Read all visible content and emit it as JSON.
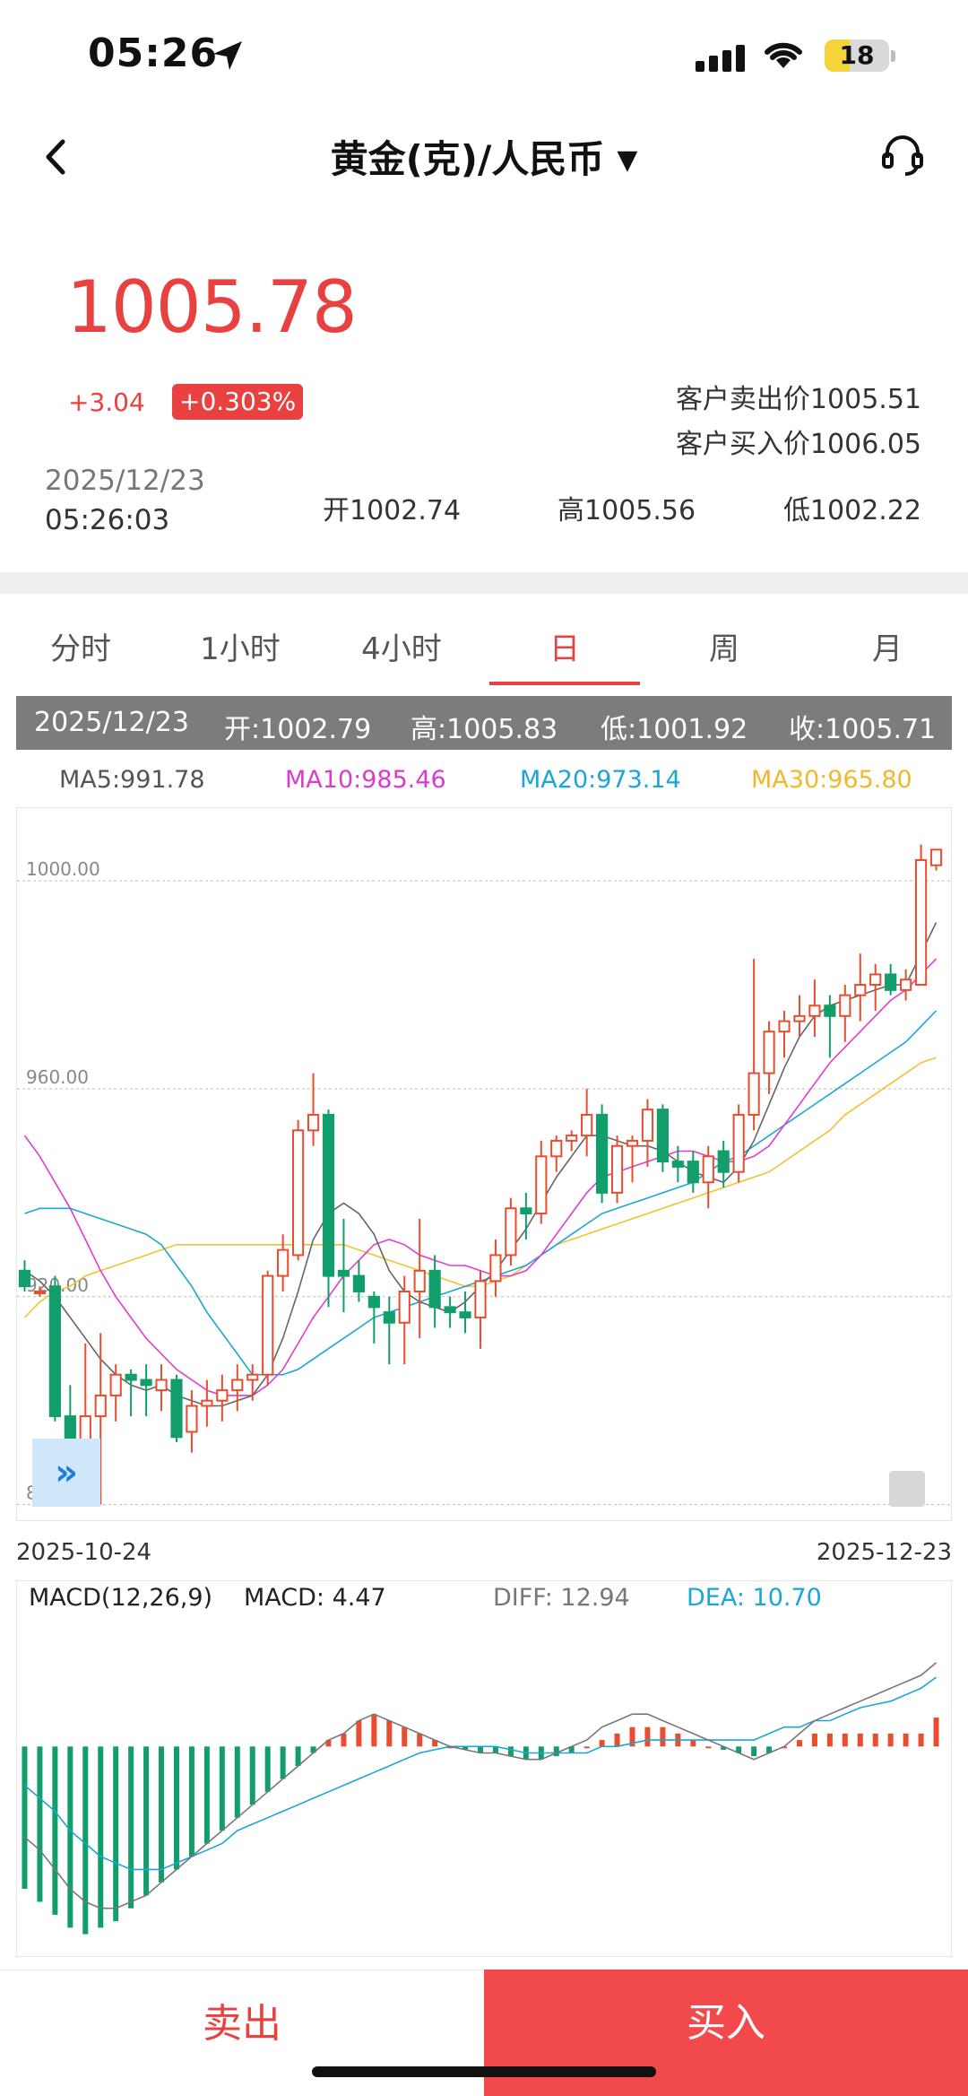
{
  "status_bar": {
    "time": "05:26",
    "battery": "18"
  },
  "header": {
    "title": "黄金(克)/人民币",
    "caret": "▼"
  },
  "quote": {
    "price": "1005.78",
    "change_abs": "+3.04",
    "change_pct": "+0.303%",
    "sell_price": "客户卖出价1005.51",
    "buy_price": "客户买入价1006.05",
    "date": "2025/12/23",
    "time": "05:26:03",
    "open": "开1002.74",
    "high": "高1005.56",
    "low": "低1002.22"
  },
  "tabs": [
    "分时",
    "1小时",
    "4小时",
    "日",
    "周",
    "月"
  ],
  "active_tab": "日",
  "ohlc": {
    "date": "2025/12/23",
    "open": "开:1002.79",
    "high": "高:1005.83",
    "low": "低:1001.92",
    "close": "收:1005.71"
  },
  "ma_legend": {
    "ma5": "MA5:991.78",
    "ma10": "MA10:985.46",
    "ma20": "MA20:973.14",
    "ma30": "MA30:965.80"
  },
  "colors": {
    "up": "#e94c2e",
    "down": "#129e6a",
    "ma5": "#666666",
    "ma10": "#e03ccf",
    "ma20": "#1aa6d6",
    "ma30": "#f2c22e",
    "accent": "#e94040"
  },
  "chart_data": [
    {
      "type": "candlestick",
      "y_ticks": [
        "1000.00",
        "960.00",
        "920.00",
        "880.00"
      ],
      "ylim": [
        877,
        1014
      ],
      "x_start_label": "2025-10-24",
      "x_end_label": "2025-12-23",
      "candles": [
        {
          "o": 925,
          "h": 927,
          "l": 921,
          "c": 922
        },
        {
          "o": 921,
          "h": 922,
          "l": 920,
          "c": 921
        },
        {
          "o": 922,
          "h": 924,
          "l": 896,
          "c": 897
        },
        {
          "o": 897,
          "h": 903,
          "l": 884,
          "c": 890
        },
        {
          "o": 890,
          "h": 911,
          "l": 884,
          "c": 897
        },
        {
          "o": 897,
          "h": 913,
          "l": 880,
          "c": 901
        },
        {
          "o": 901,
          "h": 907,
          "l": 896,
          "c": 905
        },
        {
          "o": 905,
          "h": 906,
          "l": 897,
          "c": 904
        },
        {
          "o": 904,
          "h": 907,
          "l": 897,
          "c": 903
        },
        {
          "o": 902,
          "h": 907,
          "l": 898,
          "c": 904
        },
        {
          "o": 904,
          "h": 905,
          "l": 892,
          "c": 893
        },
        {
          "o": 894,
          "h": 902,
          "l": 890,
          "c": 899
        },
        {
          "o": 899,
          "h": 904,
          "l": 895,
          "c": 900
        },
        {
          "o": 900,
          "h": 905,
          "l": 896,
          "c": 902
        },
        {
          "o": 902,
          "h": 907,
          "l": 898,
          "c": 904
        },
        {
          "o": 904,
          "h": 907,
          "l": 900,
          "c": 905
        },
        {
          "o": 905,
          "h": 925,
          "l": 903,
          "c": 924
        },
        {
          "o": 924,
          "h": 932,
          "l": 921,
          "c": 929
        },
        {
          "o": 928,
          "h": 954,
          "l": 927,
          "c": 952
        },
        {
          "o": 952,
          "h": 963,
          "l": 949,
          "c": 955
        },
        {
          "o": 955,
          "h": 956,
          "l": 918,
          "c": 924
        },
        {
          "o": 925,
          "h": 935,
          "l": 917,
          "c": 924
        },
        {
          "o": 924,
          "h": 927,
          "l": 919,
          "c": 921
        },
        {
          "o": 920,
          "h": 921,
          "l": 911,
          "c": 918
        },
        {
          "o": 917,
          "h": 920,
          "l": 907,
          "c": 915
        },
        {
          "o": 915,
          "h": 924,
          "l": 907,
          "c": 921
        },
        {
          "o": 921,
          "h": 935,
          "l": 912,
          "c": 925
        },
        {
          "o": 925,
          "h": 928,
          "l": 914,
          "c": 918
        },
        {
          "o": 918,
          "h": 920,
          "l": 914,
          "c": 917
        },
        {
          "o": 917,
          "h": 921,
          "l": 913,
          "c": 916
        },
        {
          "o": 916,
          "h": 925,
          "l": 910,
          "c": 923
        },
        {
          "o": 923,
          "h": 931,
          "l": 920,
          "c": 928
        },
        {
          "o": 928,
          "h": 939,
          "l": 926,
          "c": 937
        },
        {
          "o": 937,
          "h": 940,
          "l": 931,
          "c": 936
        },
        {
          "o": 936,
          "h": 950,
          "l": 934,
          "c": 947
        },
        {
          "o": 947,
          "h": 951,
          "l": 944,
          "c": 950
        },
        {
          "o": 950,
          "h": 952,
          "l": 948,
          "c": 951
        },
        {
          "o": 951,
          "h": 960,
          "l": 947,
          "c": 955
        },
        {
          "o": 955,
          "h": 957,
          "l": 938,
          "c": 940
        },
        {
          "o": 940,
          "h": 951,
          "l": 938,
          "c": 949
        },
        {
          "o": 949,
          "h": 951,
          "l": 942,
          "c": 950
        },
        {
          "o": 950,
          "h": 958,
          "l": 945,
          "c": 956
        },
        {
          "o": 956,
          "h": 957,
          "l": 944,
          "c": 946
        },
        {
          "o": 946,
          "h": 949,
          "l": 942,
          "c": 945
        },
        {
          "o": 946,
          "h": 948,
          "l": 940,
          "c": 942
        },
        {
          "o": 942,
          "h": 949,
          "l": 937,
          "c": 947
        },
        {
          "o": 948,
          "h": 950,
          "l": 941,
          "c": 944
        },
        {
          "o": 944,
          "h": 957,
          "l": 942,
          "c": 955
        },
        {
          "o": 955,
          "h": 985,
          "l": 952,
          "c": 963
        },
        {
          "o": 963,
          "h": 973,
          "l": 959,
          "c": 971
        },
        {
          "o": 971,
          "h": 975,
          "l": 966,
          "c": 973
        },
        {
          "o": 973,
          "h": 978,
          "l": 970,
          "c": 974
        },
        {
          "o": 974,
          "h": 981,
          "l": 970,
          "c": 976
        },
        {
          "o": 976,
          "h": 978,
          "l": 966,
          "c": 974
        },
        {
          "o": 974,
          "h": 980,
          "l": 969,
          "c": 978
        },
        {
          "o": 978,
          "h": 986,
          "l": 973,
          "c": 980
        },
        {
          "o": 980,
          "h": 984,
          "l": 975,
          "c": 982
        },
        {
          "o": 982,
          "h": 984,
          "l": 978,
          "c": 979
        },
        {
          "o": 979,
          "h": 983,
          "l": 977,
          "c": 981
        },
        {
          "o": 980,
          "h": 1007,
          "l": 980,
          "c": 1004
        },
        {
          "o": 1003,
          "h": 1006,
          "l": 1002,
          "c": 1006
        }
      ],
      "ma5": [
        925,
        923,
        920,
        916,
        912,
        908,
        905,
        903,
        902,
        903,
        901,
        900,
        899,
        899,
        900,
        901,
        905,
        912,
        921,
        931,
        936,
        938,
        936,
        932,
        925,
        921,
        919,
        918,
        917,
        919,
        922,
        925,
        929,
        933,
        938,
        943,
        947,
        951,
        951,
        950,
        949,
        949,
        948,
        946,
        944,
        943,
        942,
        945,
        950,
        957,
        964,
        970,
        974,
        976,
        977,
        978,
        979,
        980,
        980,
        986,
        992
      ],
      "ma10": [
        951,
        947,
        942,
        937,
        931,
        925,
        920,
        916,
        912,
        909,
        906,
        904,
        902,
        901,
        901,
        901,
        903,
        906,
        911,
        916,
        920,
        924,
        927,
        930,
        931,
        930,
        928,
        927,
        926,
        926,
        925,
        924,
        924,
        925,
        928,
        932,
        936,
        940,
        943,
        944,
        945,
        946,
        947,
        948,
        948,
        947,
        946,
        946,
        947,
        949,
        953,
        957,
        961,
        965,
        968,
        971,
        974,
        977,
        979,
        982,
        985
      ],
      "ma20": [
        936,
        937,
        937,
        937,
        936,
        935,
        934,
        933,
        932,
        930,
        926,
        922,
        917,
        913,
        909,
        905,
        905,
        905,
        906,
        908,
        910,
        912,
        914,
        916,
        917,
        918,
        919,
        920,
        921,
        922,
        923,
        924,
        925,
        926,
        928,
        930,
        932,
        934,
        936,
        937,
        938,
        939,
        940,
        941,
        942,
        944,
        946,
        947,
        949,
        951,
        953,
        955,
        957,
        959,
        961,
        963,
        965,
        967,
        969,
        972,
        975
      ],
      "ma30": [
        916,
        919,
        921,
        922,
        924,
        925,
        926,
        927,
        928,
        929,
        930,
        930,
        930,
        930,
        930,
        930,
        930,
        930,
        930,
        930,
        930,
        930,
        929,
        928,
        927,
        926,
        925,
        924,
        923,
        922,
        922,
        923,
        924,
        926,
        928,
        930,
        931,
        932,
        933,
        934,
        935,
        936,
        937,
        938,
        939,
        940,
        941,
        942,
        943,
        944,
        946,
        948,
        950,
        952,
        955,
        957,
        959,
        961,
        963,
        965,
        966
      ]
    },
    {
      "type": "macd",
      "params": "MACD(12,26,9)",
      "macd_label": "MACD: 4.47",
      "diff_label": "DIFF: 12.94",
      "dea_label": "DEA: 10.70",
      "ylim": [
        -31,
        20
      ],
      "hist": [
        -22,
        -24,
        -26,
        -28,
        -29,
        -28,
        -27,
        -25,
        -23,
        -21,
        -19,
        -17,
        -15,
        -13,
        -11,
        -9,
        -7,
        -5,
        -3,
        -1,
        1,
        2,
        4,
        5,
        4,
        3,
        2,
        1,
        0,
        -0.5,
        -1,
        -1,
        -1.5,
        -2,
        -2,
        -1.5,
        -1,
        0,
        1,
        2,
        3,
        3,
        3,
        2,
        1,
        0,
        -0.5,
        -1,
        -1.5,
        -1,
        0,
        1,
        2,
        2,
        2,
        2,
        2,
        2,
        2,
        2,
        4.47
      ],
      "diff": [
        -14,
        -16,
        -19,
        -22,
        -24,
        -25,
        -25,
        -24,
        -23,
        -21,
        -19,
        -17,
        -15,
        -13,
        -11,
        -9,
        -7,
        -5,
        -3,
        -1,
        1,
        2,
        4,
        5,
        4,
        3,
        2,
        1,
        0,
        -0.5,
        -1,
        -1,
        -1.5,
        -2,
        -2,
        -1,
        0,
        1,
        3,
        4,
        5,
        5,
        4,
        3,
        2,
        1,
        0,
        -1,
        -2,
        -1,
        0,
        2,
        4,
        5,
        6,
        7,
        8,
        9,
        10,
        11,
        12.94
      ],
      "dea": [
        -6,
        -8,
        -10,
        -13,
        -15,
        -17,
        -18,
        -19,
        -19,
        -19,
        -18,
        -17,
        -16,
        -15,
        -13,
        -12,
        -11,
        -10,
        -9,
        -8,
        -7,
        -6,
        -5,
        -4,
        -3,
        -2,
        -1,
        -0.5,
        0,
        0,
        0,
        0,
        -0.5,
        -1,
        -1,
        -1,
        -1,
        -1,
        0,
        0,
        0.5,
        1,
        1,
        1,
        1,
        1,
        1,
        1,
        1,
        2,
        3,
        3,
        4,
        4,
        5,
        6,
        6.5,
        7,
        8,
        9,
        10.7
      ]
    }
  ],
  "bottom_bar": {
    "sell_label": "卖出",
    "buy_label": "买入"
  }
}
